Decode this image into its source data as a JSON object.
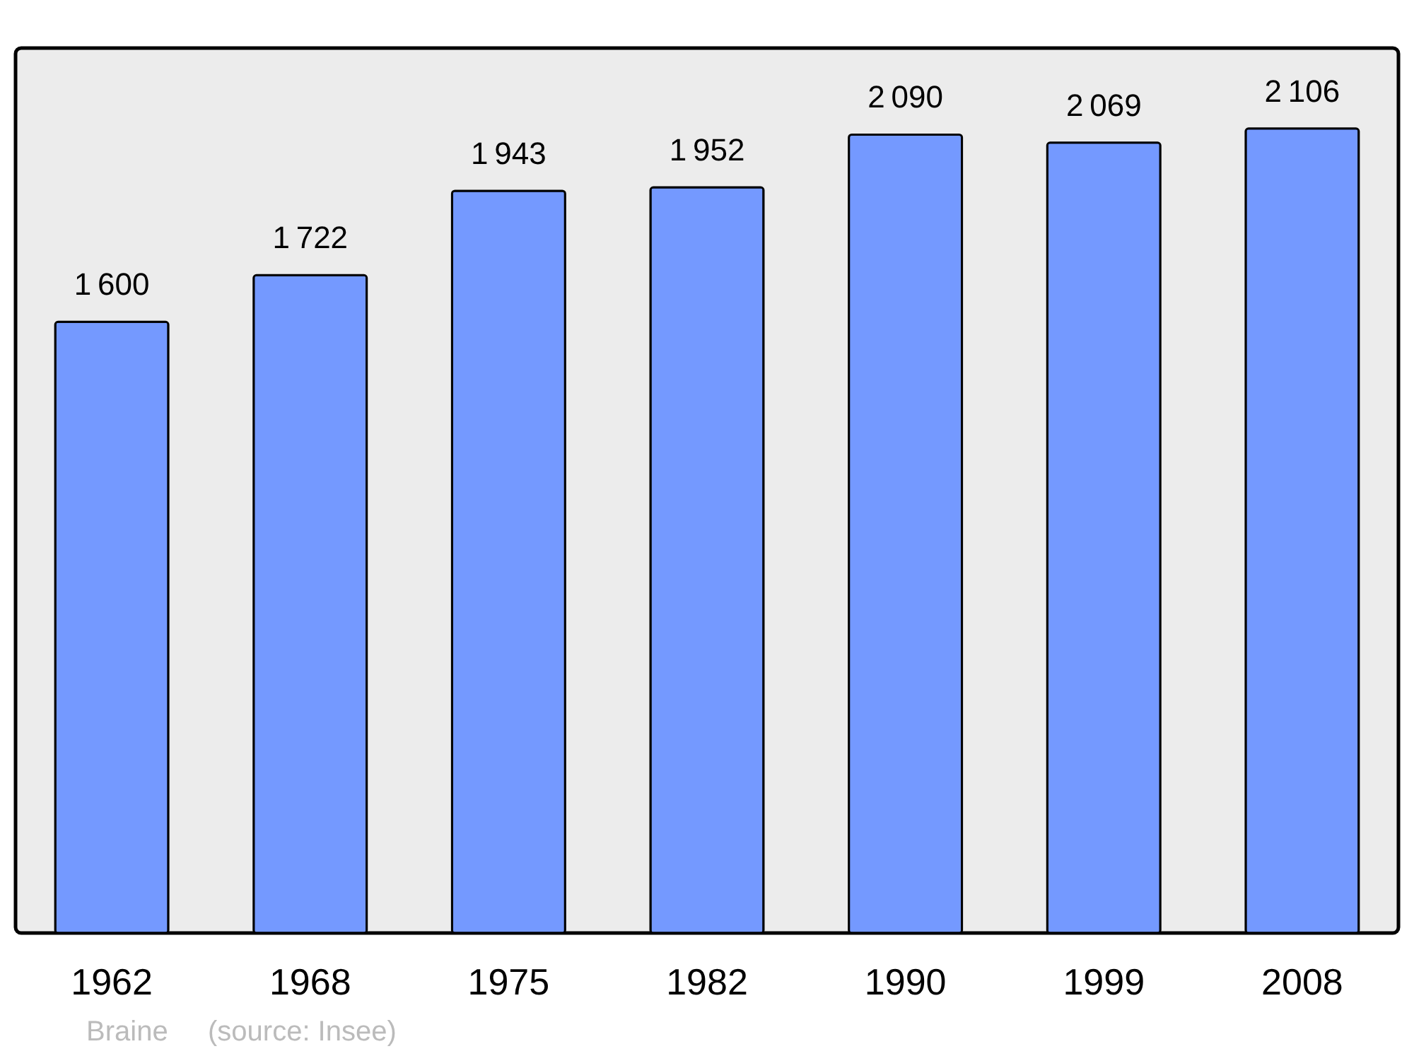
{
  "chart_data": {
    "type": "bar",
    "categories": [
      "1962",
      "1968",
      "1975",
      "1982",
      "1990",
      "1999",
      "2008"
    ],
    "values": [
      1600,
      1722,
      1943,
      1952,
      2090,
      2069,
      2106
    ],
    "color": "#7499ff",
    "data_labels": true,
    "grid": false,
    "annotations": [
      "Braine",
      "(source: Insee)"
    ]
  }
}
